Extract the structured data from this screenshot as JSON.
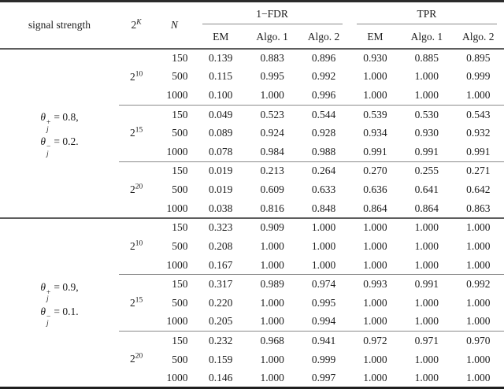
{
  "colors": {
    "background": "#ffffff",
    "text": "#1c1c1c",
    "rule_heavy": "#2b2b2b",
    "rule_medium": "#5e5e5e",
    "rule_light": "#8a8a8a"
  },
  "table": {
    "header": {
      "signal_strength": "signal strength",
      "k_base": "2",
      "k_exp": "K",
      "n": "N",
      "groups": [
        {
          "label": "1−FDR"
        },
        {
          "label": "TPR"
        }
      ],
      "subcolumns": [
        "EM",
        "Algo. 1",
        "Algo. 2"
      ]
    },
    "sections": [
      {
        "label": {
          "theta": "θ",
          "sub": "j",
          "sup1": "+",
          "rhs1": "= 0.8,",
          "sup2": "−",
          "rhs2": "= 0.2."
        },
        "blocks": [
          {
            "k_base": "2",
            "k_exp": "10",
            "rows": [
              {
                "n": "150",
                "values": [
                  "0.139",
                  "0.883",
                  "0.896",
                  "0.930",
                  "0.885",
                  "0.895"
                ]
              },
              {
                "n": "500",
                "values": [
                  "0.115",
                  "0.995",
                  "0.992",
                  "1.000",
                  "1.000",
                  "0.999"
                ]
              },
              {
                "n": "1000",
                "values": [
                  "0.100",
                  "1.000",
                  "0.996",
                  "1.000",
                  "1.000",
                  "1.000"
                ]
              }
            ]
          },
          {
            "k_base": "2",
            "k_exp": "15",
            "rows": [
              {
                "n": "150",
                "values": [
                  "0.049",
                  "0.523",
                  "0.544",
                  "0.539",
                  "0.530",
                  "0.543"
                ]
              },
              {
                "n": "500",
                "values": [
                  "0.089",
                  "0.924",
                  "0.928",
                  "0.934",
                  "0.930",
                  "0.932"
                ]
              },
              {
                "n": "1000",
                "values": [
                  "0.078",
                  "0.984",
                  "0.988",
                  "0.991",
                  "0.991",
                  "0.991"
                ]
              }
            ]
          },
          {
            "k_base": "2",
            "k_exp": "20",
            "rows": [
              {
                "n": "150",
                "values": [
                  "0.019",
                  "0.213",
                  "0.264",
                  "0.270",
                  "0.255",
                  "0.271"
                ]
              },
              {
                "n": "500",
                "values": [
                  "0.019",
                  "0.609",
                  "0.633",
                  "0.636",
                  "0.641",
                  "0.642"
                ]
              },
              {
                "n": "1000",
                "values": [
                  "0.038",
                  "0.816",
                  "0.848",
                  "0.864",
                  "0.864",
                  "0.863"
                ]
              }
            ]
          }
        ]
      },
      {
        "label": {
          "theta": "θ",
          "sub": "j",
          "sup1": "+",
          "rhs1": "= 0.9,",
          "sup2": "−",
          "rhs2": "= 0.1."
        },
        "blocks": [
          {
            "k_base": "2",
            "k_exp": "10",
            "rows": [
              {
                "n": "150",
                "values": [
                  "0.323",
                  "0.909",
                  "1.000",
                  "1.000",
                  "1.000",
                  "1.000"
                ]
              },
              {
                "n": "500",
                "values": [
                  "0.208",
                  "1.000",
                  "1.000",
                  "1.000",
                  "1.000",
                  "1.000"
                ]
              },
              {
                "n": "1000",
                "values": [
                  "0.167",
                  "1.000",
                  "1.000",
                  "1.000",
                  "1.000",
                  "1.000"
                ]
              }
            ]
          },
          {
            "k_base": "2",
            "k_exp": "15",
            "rows": [
              {
                "n": "150",
                "values": [
                  "0.317",
                  "0.989",
                  "0.974",
                  "0.993",
                  "0.991",
                  "0.992"
                ]
              },
              {
                "n": "500",
                "values": [
                  "0.220",
                  "1.000",
                  "0.995",
                  "1.000",
                  "1.000",
                  "1.000"
                ]
              },
              {
                "n": "1000",
                "values": [
                  "0.205",
                  "1.000",
                  "0.994",
                  "1.000",
                  "1.000",
                  "1.000"
                ]
              }
            ]
          },
          {
            "k_base": "2",
            "k_exp": "20",
            "rows": [
              {
                "n": "150",
                "values": [
                  "0.232",
                  "0.968",
                  "0.941",
                  "0.972",
                  "0.971",
                  "0.970"
                ]
              },
              {
                "n": "500",
                "values": [
                  "0.159",
                  "1.000",
                  "0.999",
                  "1.000",
                  "1.000",
                  "1.000"
                ]
              },
              {
                "n": "1000",
                "values": [
                  "0.146",
                  "1.000",
                  "0.997",
                  "1.000",
                  "1.000",
                  "1.000"
                ]
              }
            ]
          }
        ]
      }
    ]
  }
}
